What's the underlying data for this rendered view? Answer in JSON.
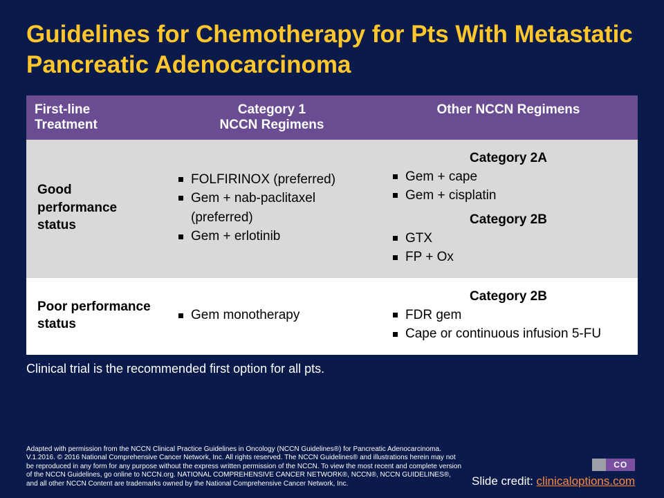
{
  "colors": {
    "background": "#0a1a4a",
    "title": "#ffc72c",
    "header_bg": "#6a4c93",
    "row_alt_bg": "#d9d9d9",
    "row_bg": "#ffffff",
    "link": "#ff8a3d",
    "logo_grey": "#9aa0a6",
    "logo_purple": "#7a4ea0"
  },
  "title": "Guidelines for Chemotherapy for Pts With Metastatic Pancreatic Adenocarcinoma",
  "table": {
    "headers": {
      "col1": "First-line Treatment",
      "col2_line1": "Category 1",
      "col2_line2": "NCCN Regimens",
      "col3": "Other NCCN Regimens"
    },
    "rows": [
      {
        "label": "Good performance status",
        "cat1": {
          "items": [
            "FOLFIRINOX (preferred)",
            "Gem + nab-paclitaxel (preferred)",
            "Gem + erlotinib"
          ]
        },
        "other": {
          "groups": [
            {
              "label": "Category 2A",
              "items": [
                "Gem + cape",
                "Gem + cisplatin"
              ]
            },
            {
              "label": "Category 2B",
              "items": [
                "GTX",
                "FP + Ox"
              ]
            }
          ]
        }
      },
      {
        "label": "Poor performance status",
        "cat1": {
          "items": [
            "Gem monotherapy"
          ]
        },
        "other": {
          "groups": [
            {
              "label": "Category 2B",
              "items": [
                "FDR gem",
                "Cape or continuous infusion 5-FU"
              ]
            }
          ]
        }
      }
    ]
  },
  "note": "Clinical trial is the recommended first option for all pts.",
  "fineprint": "Adapted with permission from the NCCN Clinical Practice Guidelines in Oncology (NCCN Guidelines®) for Pancreatic Adenocarcinoma. V.1.2016. © 2016 National Comprehensive Cancer Network, Inc. All rights reserved. The NCCN Guidelines® and illustrations herein may not be reproduced in any form for any purpose without the express written permission of the NCCN. To view the most recent and complete version of the NCCN Guidelines, go online to NCCN.org. NATIONAL COMPREHENSIVE CANCER NETWORK®, NCCN®, NCCN GUIDELINES®, and all other NCCN Content are trademarks owned by the National Comprehensive Cancer Network, Inc.",
  "logo_text": "CO",
  "credit_prefix": "Slide credit: ",
  "credit_link": "clinicaloptions.com"
}
